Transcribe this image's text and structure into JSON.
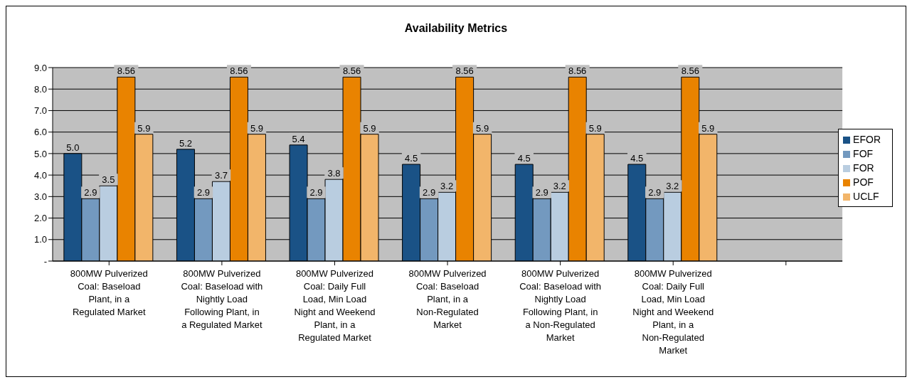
{
  "chart_data": {
    "type": "bar",
    "title": "Availability Metrics",
    "categories": [
      "800MW Pulverized Coal: Baseload Plant, in a Regulated Market",
      "800MW Pulverized Coal: Baseload with Nightly Load Following Plant, in a Regulated Market",
      "800MW Pulverized Coal: Daily Full Load, Min Load Night and Weekend Plant, in a Regulated Market",
      "800MW Pulverized Coal: Baseload Plant, in a Non-Regulated Market",
      "800MW Pulverized Coal: Baseload with Nightly Load Following Plant, in a Non-Regulated Market",
      "800MW Pulverized Coal: Daily Full Load, Min Load Night and Weekend Plant, in a Non-Regulated Market",
      null
    ],
    "series": [
      {
        "name": "EFOR",
        "color": "#1a5286",
        "values": [
          5.0,
          5.2,
          5.4,
          4.5,
          4.5,
          4.5,
          null
        ],
        "value_labels": [
          "5.0",
          "5.2",
          "5.4",
          "4.5",
          "4.5",
          "4.5",
          null
        ]
      },
      {
        "name": "FOF",
        "color": "#7399bf",
        "values": [
          2.9,
          2.9,
          2.9,
          2.9,
          2.9,
          2.9,
          null
        ],
        "value_labels": [
          "2.9",
          "2.9",
          "2.9",
          "2.9",
          "2.9",
          "2.9",
          null
        ]
      },
      {
        "name": "FOR",
        "color": "#b9cde0",
        "values": [
          3.5,
          3.7,
          3.8,
          3.2,
          3.2,
          3.2,
          null
        ],
        "value_labels": [
          "3.5",
          "3.7",
          "3.8",
          "3.2",
          "3.2",
          "3.2",
          null
        ]
      },
      {
        "name": "POF",
        "color": "#e98300",
        "values": [
          8.56,
          8.56,
          8.56,
          8.56,
          8.56,
          8.56,
          null
        ],
        "value_labels": [
          "8.56",
          "8.56",
          "8.56",
          "8.56",
          "8.56",
          "8.56",
          null
        ]
      },
      {
        "name": "UCLF",
        "color": "#f2b56a",
        "values": [
          5.9,
          5.9,
          5.9,
          5.9,
          5.9,
          5.9,
          null
        ],
        "value_labels": [
          "5.9",
          "5.9",
          "5.9",
          "5.9",
          "5.9",
          "5.9",
          null
        ]
      }
    ],
    "ylim": [
      0,
      9
    ],
    "yticks": [
      {
        "value": 0,
        "label": "-"
      },
      {
        "value": 1,
        "label": "1.0"
      },
      {
        "value": 2,
        "label": "2.0"
      },
      {
        "value": 3,
        "label": "3.0"
      },
      {
        "value": 4,
        "label": "4.0"
      },
      {
        "value": 5,
        "label": "5.0"
      },
      {
        "value": 6,
        "label": "6.0"
      },
      {
        "value": 7,
        "label": "7.0"
      },
      {
        "value": 8,
        "label": "8.0"
      },
      {
        "value": 9,
        "label": "9.0"
      }
    ],
    "grid": "y",
    "legend": "right"
  }
}
